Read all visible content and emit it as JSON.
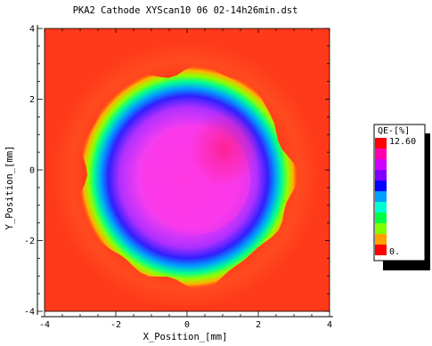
{
  "chart_data": {
    "type": "heatmap",
    "title": "PKA2 Cathode XYScan10 06 02-14h26min.dst",
    "xlabel": "X_Position_[mm]",
    "ylabel": "Y_Position_[mm]",
    "xlim": [
      -4,
      4
    ],
    "ylim": [
      -4,
      4
    ],
    "xticks": [
      "-4",
      "-2",
      "0",
      "2",
      "4"
    ],
    "yticks": [
      "-4",
      "-2",
      "0",
      "2",
      "4"
    ],
    "grid": false,
    "legend_placement": "right",
    "legend": {
      "title": "QE-[%]",
      "max_label": "12.60",
      "min_label": "0.",
      "colors": [
        "#ff0000",
        "#ff00b0",
        "#d000ff",
        "#8000ff",
        "#0000ff",
        "#00a0ff",
        "#00ffd0",
        "#00ff40",
        "#80ff00",
        "#ffa000",
        "#ff0000"
      ]
    },
    "background_color": "#ff3a1a",
    "blob": {
      "center_x": -0.05,
      "center_y": -0.15,
      "radius_mm": 2.15,
      "description_colors": {
        "core": "#ff30e0",
        "edge": "#0000ff",
        "rim": "#00ff60"
      }
    }
  }
}
